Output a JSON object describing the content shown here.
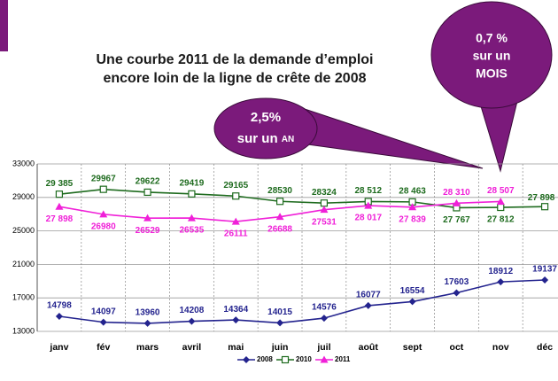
{
  "chart_data": {
    "type": "line",
    "title": [
      "Une courbe 2011 de la demande d’emploi",
      "encore loin de la ligne de crête de 2008"
    ],
    "annotations": [
      {
        "lines": [
          "2,5%",
          "sur un",
          "AN"
        ]
      },
      {
        "lines": [
          "0,7 %",
          "sur un",
          "MOIS"
        ]
      }
    ],
    "categories": [
      "janv",
      "fév",
      "mars",
      "avril",
      "mai",
      "juin",
      "juil",
      "août",
      "sept",
      "oct",
      "nov",
      "déc"
    ],
    "series": [
      {
        "name": "2008",
        "color": "#23238e",
        "marker": "diamond",
        "values": [
          14798,
          14097,
          13960,
          14208,
          14364,
          14015,
          14576,
          16077,
          16554,
          17603,
          18912,
          19137
        ],
        "value_labels": [
          "14798",
          "14097",
          "13960",
          "14208",
          "14364",
          "14015",
          "14576",
          "16077",
          "16554",
          "17603",
          "18912",
          "19137"
        ]
      },
      {
        "name": "2010",
        "color": "#1e6b1e",
        "marker": "square",
        "values": [
          29385,
          29967,
          29622,
          29419,
          29165,
          28530,
          28324,
          28512,
          28463,
          27767,
          27812,
          27898
        ],
        "value_labels": [
          "29 385",
          "29967",
          "29622",
          "29419",
          "29165",
          "28530",
          "28324",
          "28 512",
          "28 463",
          "27 767",
          "27 812",
          "27 898"
        ]
      },
      {
        "name": "2011",
        "color": "#f020d8",
        "marker": "triangle",
        "values": [
          27898,
          26980,
          26529,
          26535,
          26111,
          26688,
          27531,
          28017,
          27839,
          28310,
          28507,
          null
        ],
        "value_labels": [
          "27 898",
          "26980",
          "26529",
          "26535",
          "26111",
          "26688",
          "27531",
          "28 017",
          "27 839",
          "28 310",
          "28 507",
          null
        ]
      }
    ],
    "ylim": [
      13000,
      33000
    ],
    "yticks": [
      13000,
      17000,
      21000,
      25000,
      29000,
      33000
    ],
    "grid": true,
    "legend": "bottom"
  }
}
